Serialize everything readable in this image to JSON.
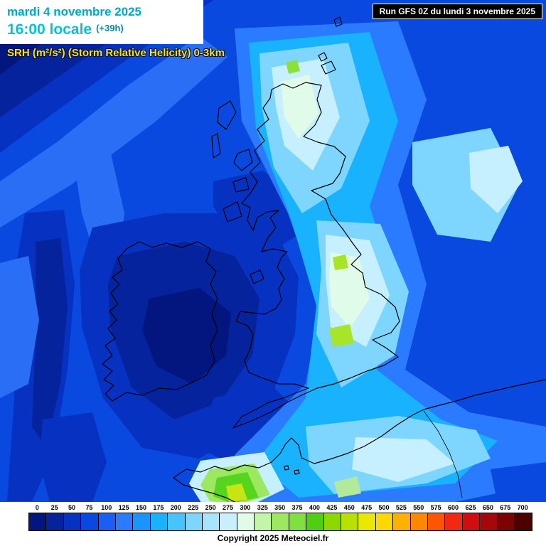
{
  "header": {
    "date": "mardi 4 novembre 2025",
    "time": "16:00 locale",
    "forecast_offset": "(+39h)",
    "parameter": "SRH (m²/s²) (Storm Relative Helicity) 0-3km",
    "run": "Run GFS 0Z du lundi 3 novembre 2025"
  },
  "footer": {
    "copyright": "Copyright 2025 Meteociel.fr"
  },
  "colorbar": {
    "ticks": [
      "0",
      "25",
      "50",
      "75",
      "100",
      "125",
      "150",
      "175",
      "200",
      "225",
      "250",
      "275",
      "300",
      "325",
      "350",
      "375",
      "400",
      "425",
      "450",
      "475",
      "500",
      "525",
      "550",
      "575",
      "600",
      "625",
      "650",
      "675",
      "700"
    ],
    "colors": [
      "#03157e",
      "#05239c",
      "#0731c0",
      "#0a49e0",
      "#1b5ef5",
      "#2a7bff",
      "#1895ff",
      "#18b2ff",
      "#45c4ff",
      "#7ed6ff",
      "#a6e4ff",
      "#c6f0ff",
      "#e0fbe8",
      "#c2f5a8",
      "#9ce860",
      "#7fe040",
      "#4fcf10",
      "#8cd800",
      "#b8e000",
      "#e8e800",
      "#ffd800",
      "#ffb000",
      "#ff8800",
      "#ff5500",
      "#f22812",
      "#cf0f0f",
      "#a50808",
      "#7a0404",
      "#4d0000"
    ]
  },
  "colors": {
    "title_cyan": "#00a9c4",
    "time_cyan": "#00c4d8",
    "param_yellow": "#ffe400",
    "run_box_bg": "#000000",
    "run_box_text": "#ffffff",
    "map_base_blue": "#0a49e0"
  }
}
